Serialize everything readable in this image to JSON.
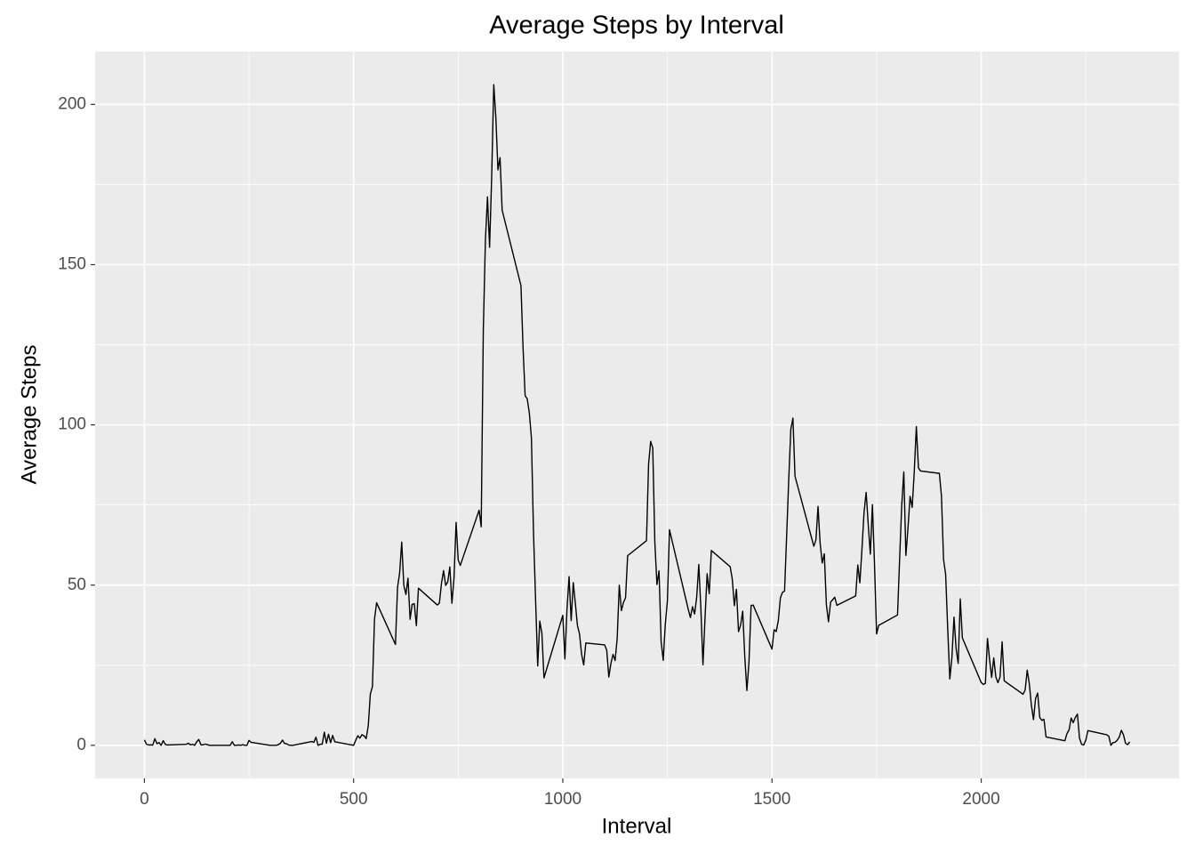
{
  "chart_data": {
    "type": "line",
    "title": "Average Steps by Interval",
    "x_label": "Interval",
    "y_label": "Average Steps",
    "xlim": [
      -117.75,
      2472.75
    ],
    "ylim": [
      -10.31,
      216.48
    ],
    "xticks": [
      0,
      500,
      1000,
      1500,
      2000
    ],
    "yticks": [
      0,
      50,
      100,
      150,
      200
    ],
    "x_minor_ticks": [
      250,
      750,
      1250,
      1750,
      2250
    ],
    "y_minor_ticks": [
      25,
      75,
      125,
      175
    ],
    "grid": true,
    "panel_color": "#ebebeb",
    "x": [
      0,
      5,
      10,
      15,
      20,
      25,
      30,
      35,
      40,
      45,
      50,
      55,
      100,
      105,
      110,
      115,
      120,
      125,
      130,
      135,
      140,
      145,
      150,
      155,
      200,
      205,
      210,
      215,
      220,
      225,
      230,
      235,
      240,
      245,
      250,
      255,
      300,
      305,
      310,
      315,
      320,
      325,
      330,
      335,
      340,
      345,
      350,
      355,
      400,
      405,
      410,
      415,
      420,
      425,
      430,
      435,
      440,
      445,
      450,
      455,
      500,
      505,
      510,
      515,
      520,
      525,
      530,
      535,
      540,
      545,
      550,
      555,
      600,
      605,
      610,
      615,
      620,
      625,
      630,
      635,
      640,
      645,
      650,
      655,
      700,
      705,
      710,
      715,
      720,
      725,
      730,
      735,
      740,
      745,
      750,
      755,
      800,
      805,
      810,
      815,
      820,
      825,
      830,
      835,
      840,
      845,
      850,
      855,
      900,
      905,
      910,
      915,
      920,
      925,
      930,
      935,
      940,
      945,
      950,
      955,
      1000,
      1005,
      1010,
      1015,
      1020,
      1025,
      1030,
      1035,
      1040,
      1045,
      1050,
      1055,
      1100,
      1105,
      1110,
      1115,
      1120,
      1125,
      1130,
      1135,
      1140,
      1145,
      1150,
      1155,
      1200,
      1205,
      1210,
      1215,
      1220,
      1225,
      1230,
      1235,
      1240,
      1245,
      1250,
      1255,
      1300,
      1305,
      1310,
      1315,
      1320,
      1325,
      1330,
      1335,
      1340,
      1345,
      1350,
      1355,
      1400,
      1405,
      1410,
      1415,
      1420,
      1425,
      1430,
      1435,
      1440,
      1445,
      1450,
      1455,
      1500,
      1505,
      1510,
      1515,
      1520,
      1525,
      1530,
      1535,
      1540,
      1545,
      1550,
      1555,
      1600,
      1605,
      1610,
      1615,
      1620,
      1625,
      1630,
      1635,
      1640,
      1645,
      1650,
      1655,
      1700,
      1705,
      1710,
      1715,
      1720,
      1725,
      1730,
      1735,
      1740,
      1745,
      1750,
      1755,
      1800,
      1805,
      1810,
      1815,
      1820,
      1825,
      1830,
      1835,
      1840,
      1845,
      1850,
      1855,
      1900,
      1905,
      1910,
      1915,
      1920,
      1925,
      1930,
      1935,
      1940,
      1945,
      1950,
      1955,
      2000,
      2005,
      2010,
      2015,
      2020,
      2025,
      2030,
      2035,
      2040,
      2045,
      2050,
      2055,
      2100,
      2105,
      2110,
      2115,
      2120,
      2125,
      2130,
      2135,
      2140,
      2145,
      2150,
      2155,
      2200,
      2205,
      2210,
      2215,
      2220,
      2225,
      2230,
      2235,
      2240,
      2245,
      2250,
      2255,
      2300,
      2305,
      2310,
      2315,
      2320,
      2325,
      2330,
      2335,
      2340,
      2345,
      2350,
      2355
    ],
    "series": [
      {
        "color": "#000000",
        "values": [
          1.7,
          0.34,
          0.13,
          0.15,
          0.08,
          2.1,
          0.53,
          0.87,
          0,
          1.47,
          0.3,
          0.13,
          0.32,
          0.68,
          0.15,
          0.34,
          0,
          1.11,
          1.83,
          0.17,
          0.17,
          0.38,
          0.26,
          0,
          0,
          0,
          1.13,
          0,
          0,
          0.13,
          0,
          0.23,
          0,
          0,
          1.55,
          0.94,
          0,
          0,
          0,
          0,
          0.21,
          0.62,
          1.62,
          0.58,
          0.49,
          0.08,
          0,
          0,
          1.19,
          0.94,
          2.57,
          0,
          0.34,
          0.36,
          4.11,
          0.66,
          3.49,
          0.83,
          3.11,
          1.11,
          0,
          1.57,
          3.0,
          2.25,
          3.32,
          2.96,
          2.09,
          6.06,
          16.02,
          18.34,
          39.45,
          44.49,
          31.49,
          49.26,
          53.77,
          63.45,
          49.96,
          47.08,
          52.15,
          39.34,
          44.02,
          44.17,
          37.36,
          49.04,
          43.81,
          44.38,
          50.51,
          54.51,
          49.92,
          50.98,
          55.68,
          44.32,
          52.26,
          69.55,
          57.85,
          56.15,
          73.38,
          68.21,
          129.43,
          157.53,
          171.15,
          155.4,
          177.3,
          206.17,
          195.92,
          179.57,
          183.4,
          167.02,
          143.45,
          124.04,
          109.11,
          108.11,
          103.72,
          95.97,
          66.21,
          45.23,
          24.79,
          38.75,
          34.98,
          21.06,
          40.57,
          26.98,
          42.42,
          52.66,
          38.92,
          50.79,
          44.28,
          37.42,
          34.7,
          28.34,
          25.09,
          31.94,
          31.36,
          29.68,
          21.32,
          25.55,
          28.38,
          26.47,
          33.43,
          49.98,
          42.04,
          44.6,
          46.04,
          59.19,
          63.87,
          87.7,
          94.85,
          92.77,
          63.4,
          50.17,
          54.47,
          32.42,
          26.53,
          37.74,
          45.06,
          67.28,
          42.34,
          39.88,
          43.26,
          40.98,
          46.25,
          56.43,
          42.75,
          25.13,
          39.96,
          53.55,
          47.32,
          60.81,
          55.75,
          51.96,
          43.58,
          48.7,
          35.47,
          37.55,
          41.85,
          27.51,
          17.11,
          26.08,
          43.62,
          43.77,
          30.02,
          36.08,
          35.49,
          38.85,
          45.96,
          47.75,
          48.13,
          65.32,
          82.91,
          98.66,
          102.11,
          83.96,
          62.13,
          64.13,
          74.55,
          63.17,
          56.91,
          59.77,
          43.87,
          38.57,
          44.66,
          45.45,
          46.21,
          43.68,
          46.62,
          56.3,
          50.72,
          61.23,
          72.72,
          78.94,
          68.94,
          59.66,
          75.09,
          56.51,
          34.77,
          37.45,
          40.68,
          58.02,
          74.7,
          85.32,
          59.26,
          67.77,
          77.7,
          74.25,
          85.34,
          99.45,
          86.58,
          85.6,
          84.87,
          77.83,
          58.04,
          53.36,
          36.32,
          20.72,
          27.4,
          40.02,
          30.21,
          25.55,
          45.66,
          33.53,
          19.62,
          19.02,
          19.34,
          33.34,
          26.81,
          21.17,
          27.3,
          21.34,
          19.55,
          21.32,
          32.3,
          20.15,
          15.94,
          17.23,
          23.45,
          19.25,
          12.45,
          8.02,
          14.66,
          16.3,
          8.68,
          7.79,
          8.13,
          2.62,
          1.45,
          3.68,
          4.81,
          8.51,
          7.08,
          8.7,
          9.75,
          2.21,
          0.32,
          0.11,
          1.6,
          4.6,
          3.3,
          2.85,
          0,
          0.83,
          0.96,
          1.58,
          2.6,
          4.7,
          3.3,
          0.64,
          0.23,
          1.08
        ]
      }
    ]
  }
}
